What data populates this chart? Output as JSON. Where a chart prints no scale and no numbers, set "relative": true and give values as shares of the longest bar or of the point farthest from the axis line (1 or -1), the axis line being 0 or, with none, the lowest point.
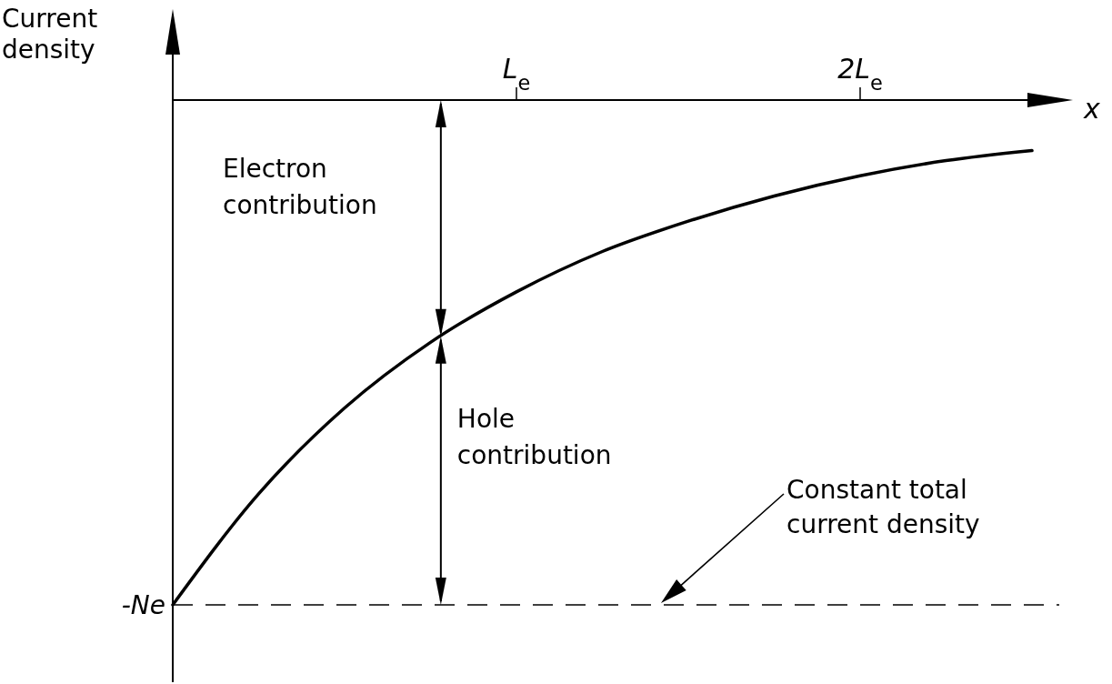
{
  "chart_data": {
    "type": "line",
    "relative": true,
    "xlabel": "x",
    "ylabel": "Current density",
    "categories": [
      null,
      null,
      null,
      null,
      "L$_{e}$",
      null,
      null,
      null,
      "2L$_{e}$",
      null,
      null
    ],
    "series": [
      {
        "color": "#000000",
        "values": [
          -1,
          -0.78,
          -0.61,
          -0.48,
          -0.38,
          -0.3,
          -0.24,
          -0.19,
          -0.15,
          -0.12,
          -0.1
        ]
      }
    ],
    "line_style": "solid",
    "ref_lines": [
      {
        "axis": "y",
        "value": -1,
        "label": "Constant total current density",
        "line_style": "dashed",
        "color": "#000000"
      }
    ],
    "annotations": [
      "Electron contribution",
      "Hole contribution",
      "-Ne"
    ]
  }
}
